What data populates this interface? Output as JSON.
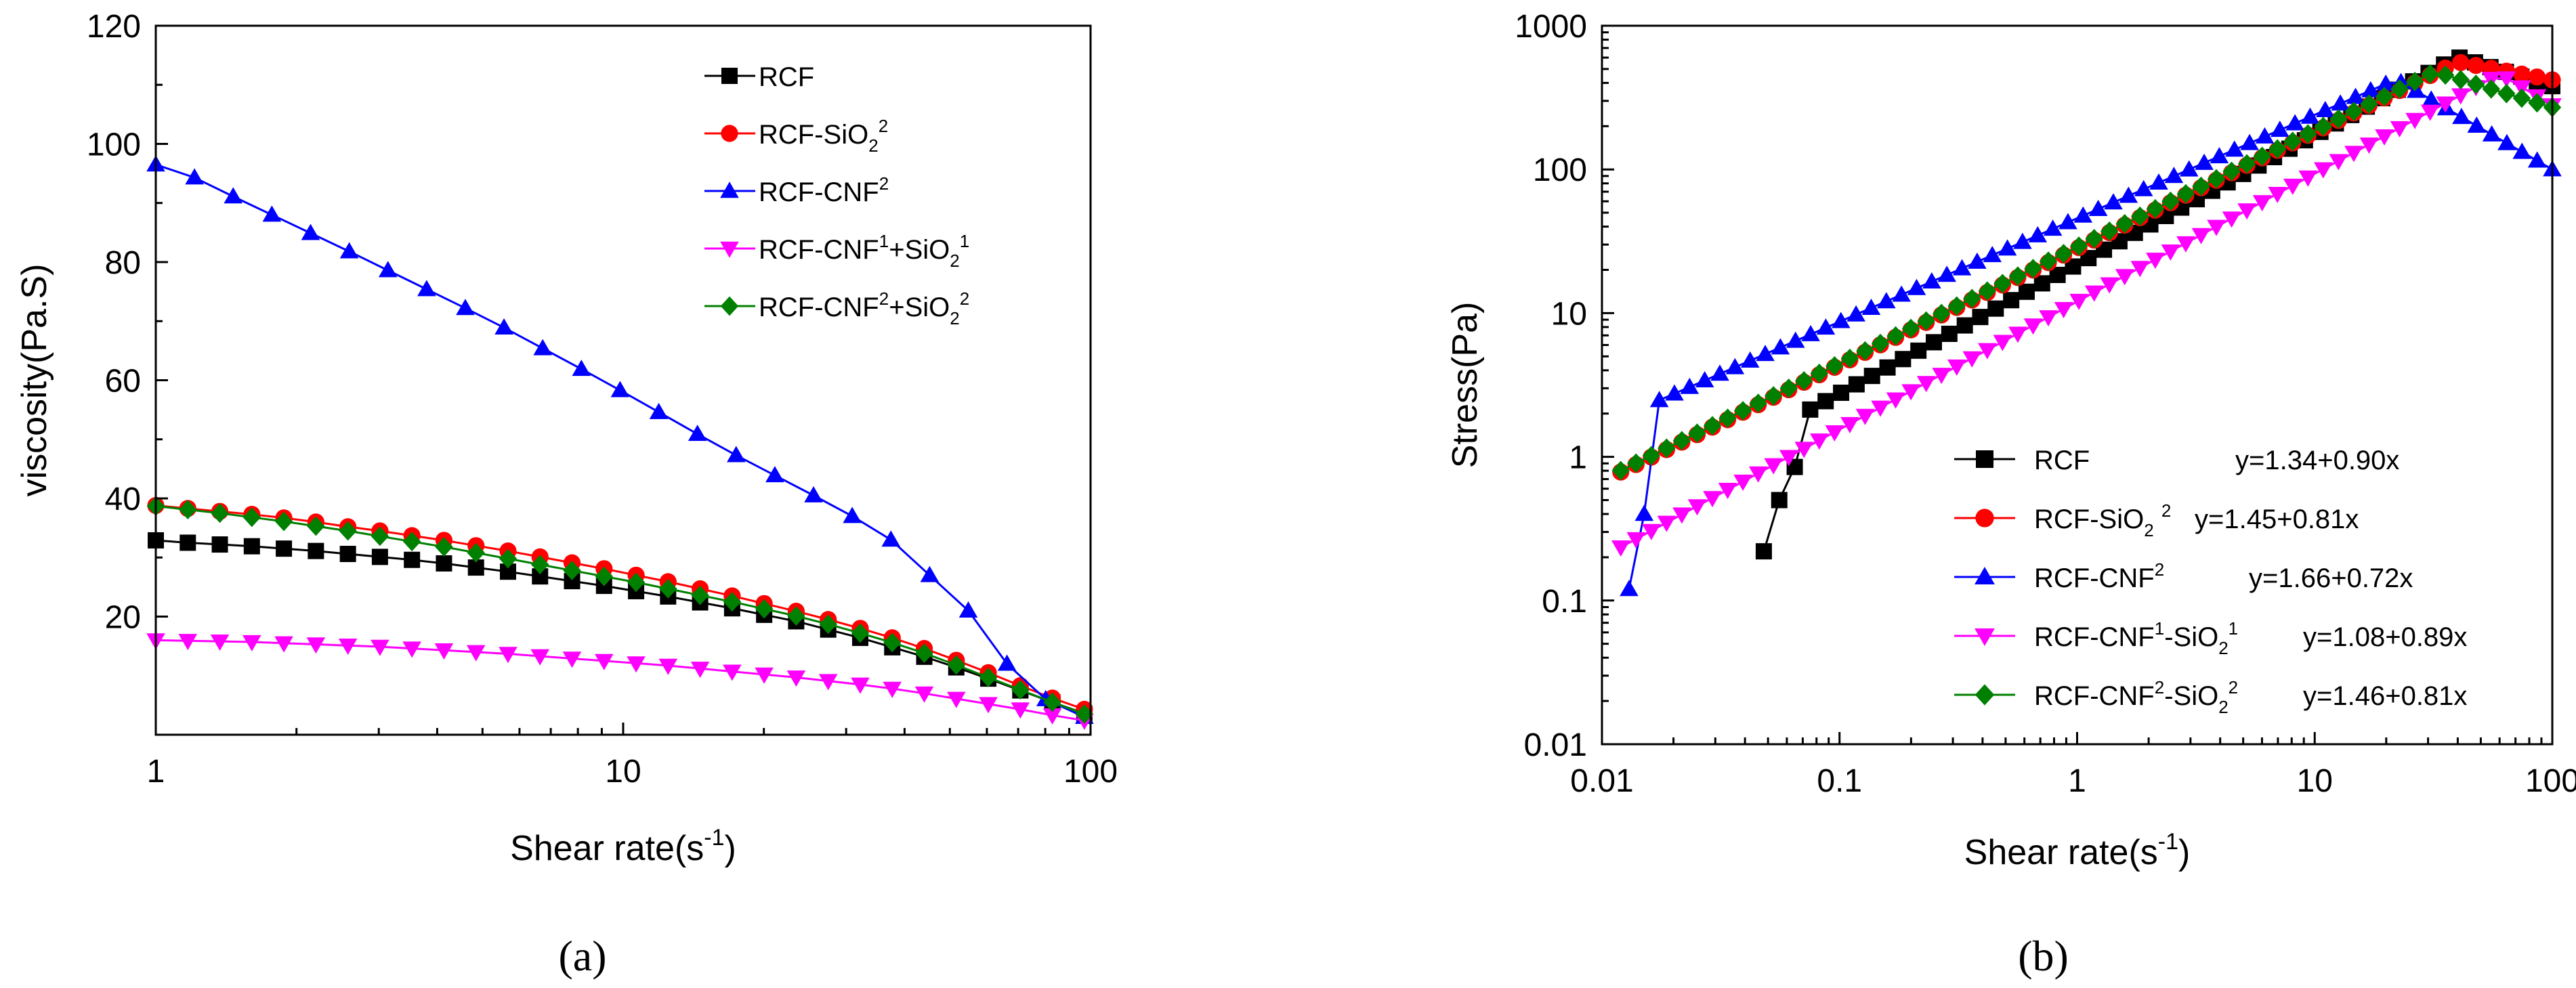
{
  "chart_data": [
    {
      "type": "line",
      "panel_label": "(a)",
      "xscale": "log",
      "yscale": "linear",
      "xlim": [
        1,
        100
      ],
      "ylim": [
        0,
        120
      ],
      "xticks": [
        1,
        10,
        100
      ],
      "xtick_labels": [
        "1",
        "10",
        "100"
      ],
      "yticks": [
        20,
        40,
        60,
        80,
        100,
        120
      ],
      "ytick_labels": [
        "20",
        "40",
        "60",
        "80",
        "100",
        "120"
      ],
      "xlabel_main": "Shear rate(s",
      "xlabel_sup": "-1",
      "xlabel_close": ")",
      "ylabel": "viscosity(Pa.S)",
      "legend_position": "top-right",
      "series": [
        {
          "name": "RCF",
          "legend": [
            {
              "t": "RCF"
            }
          ],
          "color": "#000000",
          "marker": "square",
          "x_range": [
            1,
            97
          ],
          "points": 30,
          "values": [
            32.9,
            32.5,
            32.2,
            31.9,
            31.5,
            31.1,
            30.6,
            30.1,
            29.6,
            29.0,
            28.3,
            27.6,
            26.8,
            26.0,
            25.2,
            24.3,
            23.4,
            22.4,
            21.4,
            20.3,
            19.2,
            17.8,
            16.4,
            14.8,
            13.2,
            11.4,
            9.5,
            7.5,
            5.5,
            3.6
          ]
        },
        {
          "name": "RCF-SiO2",
          "legend": [
            {
              "t": "RCF-SiO"
            },
            {
              "t": "2",
              "s": "sub"
            },
            {
              "t": "2",
              "s": "sup"
            }
          ],
          "color": "#ff0000",
          "marker": "circle",
          "x_range": [
            1,
            97
          ],
          "points": 30,
          "values": [
            38.8,
            38.3,
            37.8,
            37.3,
            36.7,
            36.0,
            35.2,
            34.5,
            33.7,
            32.9,
            32.0,
            31.1,
            30.1,
            29.1,
            28.1,
            27.0,
            25.9,
            24.7,
            23.5,
            22.2,
            20.9,
            19.5,
            18.0,
            16.4,
            14.6,
            12.6,
            10.5,
            8.3,
            6.2,
            4.3
          ]
        },
        {
          "name": "RCF-CNF2",
          "legend": [
            {
              "t": "RCF-CNF"
            },
            {
              "t": "2",
              "s": "sup"
            }
          ],
          "color": "#0000ff",
          "marker": "triangle-up",
          "x_range": [
            1,
            97
          ],
          "points": 25,
          "values": [
            96.5,
            94.3,
            91.1,
            88.0,
            84.9,
            81.8,
            78.6,
            75.4,
            72.2,
            68.9,
            65.4,
            61.9,
            58.3,
            54.6,
            50.9,
            47.3,
            43.9,
            40.5,
            37.0,
            33.0,
            27.0,
            21.0,
            12.0,
            6.0,
            3.0
          ]
        },
        {
          "name": "RCF-CNF1+SiO2",
          "legend": [
            {
              "t": "RCF-CNF"
            },
            {
              "t": "1",
              "s": "sup"
            },
            {
              "t": "+SiO"
            },
            {
              "t": "2",
              "s": "sub"
            },
            {
              "t": "1",
              "s": "sup"
            }
          ],
          "color": "#ff00ff",
          "marker": "triangle-down",
          "x_range": [
            1,
            97
          ],
          "points": 30,
          "values": [
            16.0,
            15.9,
            15.8,
            15.7,
            15.5,
            15.3,
            15.1,
            14.9,
            14.6,
            14.3,
            14.0,
            13.7,
            13.3,
            12.9,
            12.5,
            12.1,
            11.7,
            11.2,
            10.7,
            10.2,
            9.7,
            9.1,
            8.5,
            7.8,
            7.0,
            6.1,
            5.2,
            4.3,
            3.3,
            2.4
          ]
        },
        {
          "name": "RCF-CNF2+SiO2",
          "legend": [
            {
              "t": "RCF-CNF"
            },
            {
              "t": "2",
              "s": "sup"
            },
            {
              "t": "+SiO"
            },
            {
              "t": "2",
              "s": "sub"
            },
            {
              "t": "2",
              "s": "sup"
            }
          ],
          "color": "#008000",
          "marker": "diamond",
          "x_range": [
            1,
            97
          ],
          "points": 30,
          "values": [
            38.7,
            38.1,
            37.5,
            36.8,
            36.1,
            35.3,
            34.5,
            33.6,
            32.7,
            31.8,
            30.8,
            29.8,
            28.8,
            27.8,
            26.8,
            25.8,
            24.7,
            23.6,
            22.5,
            21.3,
            20.1,
            18.7,
            17.2,
            15.6,
            13.8,
            11.8,
            9.7,
            7.6,
            5.5,
            3.5
          ]
        }
      ]
    },
    {
      "type": "line",
      "panel_label": "(b)",
      "xscale": "log",
      "yscale": "log",
      "xlim": [
        0.01,
        100
      ],
      "ylim": [
        0.01,
        1000
      ],
      "xticks": [
        0.01,
        0.1,
        1,
        10,
        100
      ],
      "xtick_labels": [
        "0.01",
        "0.1",
        "1",
        "10",
        "100"
      ],
      "yticks": [
        0.01,
        0.1,
        1,
        10,
        100,
        1000
      ],
      "ytick_labels": [
        "0.01",
        "0.1",
        "1",
        "10",
        "100",
        "1000"
      ],
      "xlabel_main": "Shear rate(s",
      "xlabel_sup": "-1",
      "xlabel_close": ")",
      "ylabel": "Stress(Pa)",
      "legend_position": "bottom-right",
      "series": [
        {
          "name": "RCF",
          "legend": [
            {
              "t": "RCF"
            }
          ],
          "equation": "y=1.34+0.90x",
          "color": "#000000",
          "marker": "square",
          "fit": {
            "a": 1.34,
            "b": 0.9
          },
          "x_range": [
            0.048,
            100
          ],
          "points": 52,
          "early": [
            0.22,
            0.5,
            0.85
          ],
          "peak_x": 40,
          "end_y": 380
        },
        {
          "name": "RCF-SiO2",
          "legend": [
            {
              "t": "RCF-SiO"
            },
            {
              "t": "2",
              "s": "sub"
            },
            {
              "t": " "
            },
            {
              "t": "2",
              "s": "sup"
            }
          ],
          "equation": "y=1.45+0.81x",
          "color": "#ff0000",
          "marker": "circle",
          "fit": {
            "a": 1.45,
            "b": 0.81
          },
          "x_range": [
            0.012,
            100
          ],
          "points": 62,
          "early": [],
          "peak_x": 40,
          "end_y": 420
        },
        {
          "name": "RCF-CNF2",
          "legend": [
            {
              "t": "RCF-CNF"
            },
            {
              "t": "2",
              "s": "sup"
            }
          ],
          "equation": "y=1.66+0.72x",
          "color": "#0000ff",
          "marker": "triangle-up",
          "fit": {
            "a": 1.66,
            "b": 0.72
          },
          "x_range": [
            0.013,
            100
          ],
          "points": 62,
          "early": [
            0.12,
            0.4
          ],
          "peak_x": 22,
          "end_y": 100
        },
        {
          "name": "RCF-CNF1-SiO2",
          "legend": [
            {
              "t": "RCF-CNF"
            },
            {
              "t": "1",
              "s": "sup"
            },
            {
              "t": "-SiO"
            },
            {
              "t": "2",
              "s": "sub"
            },
            {
              "t": "1",
              "s": "sup"
            }
          ],
          "equation": "y=1.08+0.89x",
          "color": "#ff00ff",
          "marker": "triangle-down",
          "fit": {
            "a": 1.08,
            "b": 0.89
          },
          "x_range": [
            0.012,
            100
          ],
          "points": 62,
          "early": [],
          "peak_x": 60,
          "end_y": 280
        },
        {
          "name": "RCF-CNF2-SiO2",
          "legend": [
            {
              "t": "RCF-CNF"
            },
            {
              "t": "2",
              "s": "sup"
            },
            {
              "t": "-SiO"
            },
            {
              "t": "2",
              "s": "sub"
            },
            {
              "t": "2",
              "s": "sup"
            }
          ],
          "equation": "y=1.46+0.81x",
          "color": "#008000",
          "marker": "diamond",
          "fit": {
            "a": 1.46,
            "b": 0.81
          },
          "x_range": [
            0.012,
            100
          ],
          "points": 62,
          "early": [],
          "peak_x": 32,
          "end_y": 270
        }
      ]
    }
  ]
}
